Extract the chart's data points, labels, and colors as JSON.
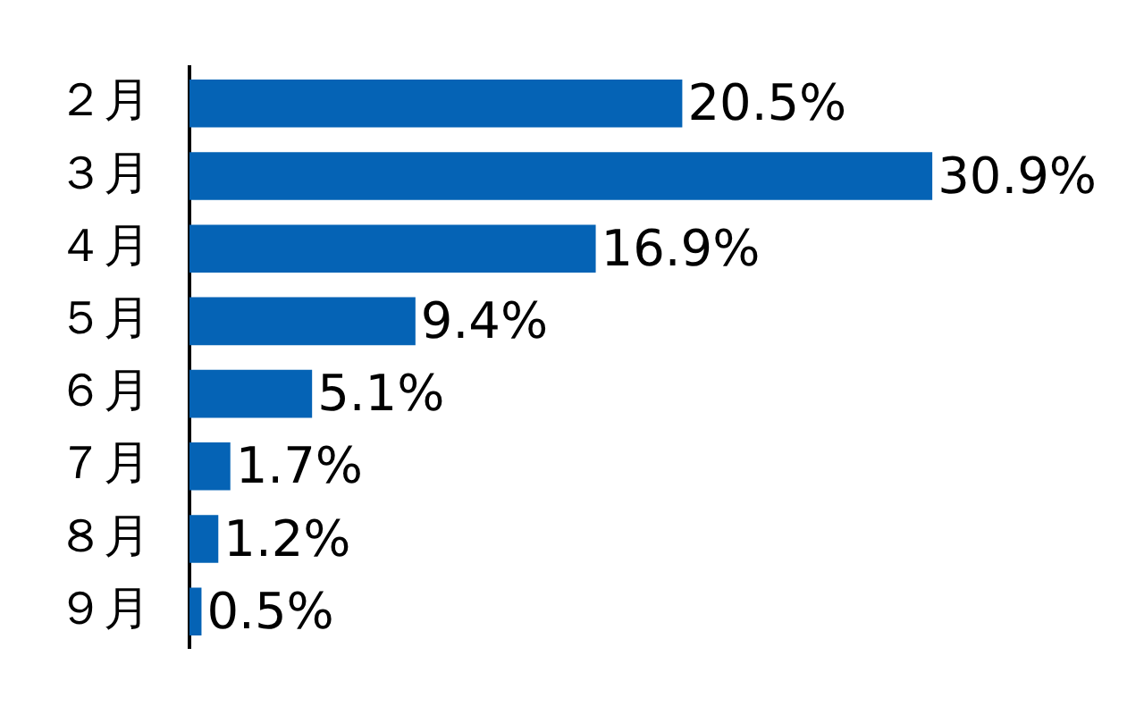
{
  "chart_data": {
    "type": "bar",
    "orientation": "horizontal",
    "categories": [
      "２月",
      "３月",
      "４月",
      "５月",
      "６月",
      "７月",
      "８月",
      "９月"
    ],
    "values": [
      20.5,
      30.9,
      16.9,
      9.4,
      5.1,
      1.7,
      1.2,
      0.5
    ],
    "value_labels": [
      "20.5%",
      "30.9%",
      "16.9%",
      "9.4%",
      "5.1%",
      "1.7%",
      "1.2%",
      "0.5%"
    ],
    "color": "#0563b5",
    "grid": false,
    "legend": false
  }
}
